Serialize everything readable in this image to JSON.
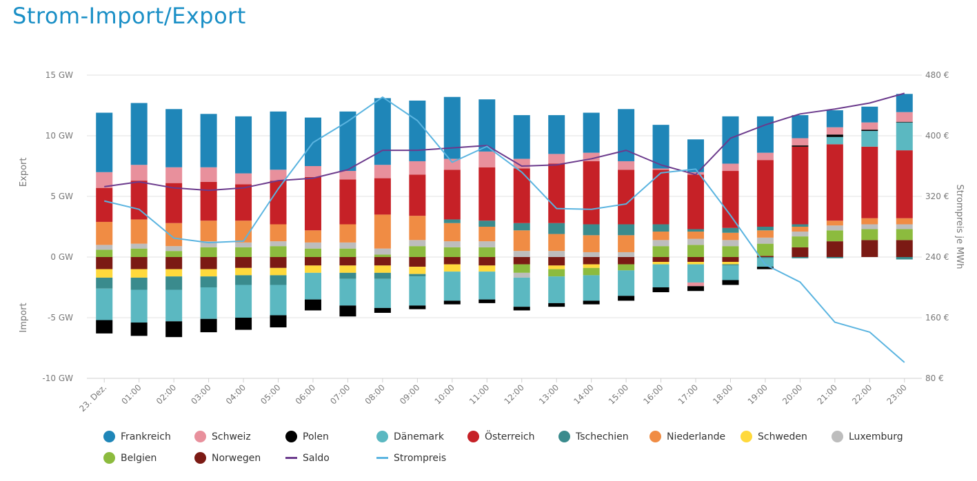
{
  "page": {
    "title": "Strom-Import/Export"
  },
  "chart_data": {
    "type": "bar",
    "stacked": true,
    "title": "Strom-Import/Export",
    "categories": [
      "23. Dez.",
      "01:00",
      "02:00",
      "03:00",
      "04:00",
      "05:00",
      "06:00",
      "07:00",
      "08:00",
      "09:00",
      "10:00",
      "11:00",
      "12:00",
      "13:00",
      "14:00",
      "15:00",
      "16:00",
      "17:00",
      "18:00",
      "19:00",
      "20:00",
      "21:00",
      "22:00",
      "23:00"
    ],
    "y_left": {
      "min": -10,
      "max": 15,
      "ticks": [
        -10,
        -5,
        0,
        5,
        10,
        15
      ],
      "tick_labels": [
        "-10 GW",
        "-5 GW",
        "0 GW",
        "5 GW",
        "10 GW",
        "15 GW"
      ]
    },
    "y_right": {
      "min": 80,
      "max": 480,
      "ticks": [
        80,
        160,
        240,
        320,
        400,
        480
      ],
      "tick_labels": [
        "80 €",
        "160 €",
        "240 €",
        "320 €",
        "400 €",
        "480 €"
      ],
      "label": "Strompreis je MWh"
    },
    "ylabel_positive": "Export",
    "ylabel_negative": "Import",
    "series": [
      {
        "name": "Frankreich",
        "color": "#1f86b8",
        "values": [
          4.9,
          5.1,
          4.8,
          4.4,
          4.7,
          4.8,
          4.0,
          4.9,
          5.5,
          5.0,
          5.1,
          4.3,
          3.6,
          3.2,
          3.3,
          4.3,
          3.6,
          2.7,
          3.9,
          3.0,
          1.9,
          1.4,
          1.3,
          1.5
        ]
      },
      {
        "name": "Schweiz",
        "color": "#e8909c",
        "values": [
          1.3,
          1.3,
          1.3,
          1.2,
          0.9,
          0.9,
          0.9,
          0.7,
          1.1,
          1.1,
          0.9,
          1.3,
          0.8,
          0.8,
          0.7,
          0.7,
          0.1,
          0.2,
          0.6,
          0.6,
          0.6,
          0.6,
          0.6,
          0.8
        ]
      },
      {
        "name": "Polen",
        "color": "#000000",
        "values": [
          0,
          0,
          0,
          0,
          0,
          0,
          0,
          0,
          0,
          0,
          0,
          0,
          0,
          0,
          0,
          0,
          0,
          0,
          0,
          0,
          0.1,
          0.2,
          0.1,
          0.05
        ]
      },
      {
        "name": "Dänemark",
        "color": "#5bb8c1",
        "values": [
          0,
          0,
          0,
          0,
          0,
          0,
          0,
          0,
          0,
          0,
          0,
          0,
          0,
          0,
          0,
          0,
          0,
          0,
          0,
          0,
          0,
          0.6,
          1.3,
          2.3
        ]
      },
      {
        "name": "Österreich",
        "color": "#c62127",
        "values": [
          2.8,
          3.2,
          3.3,
          3.2,
          3.0,
          3.6,
          4.4,
          3.7,
          3.0,
          3.4,
          4.1,
          4.4,
          4.5,
          4.9,
          5.2,
          4.5,
          4.5,
          4.5,
          4.7,
          5.5,
          6.4,
          6.3,
          5.9,
          5.6
        ]
      },
      {
        "name": "Tschechien",
        "color": "#3a8b8d",
        "values": [
          0,
          0,
          0,
          0,
          0,
          0,
          0,
          0,
          0,
          0,
          0.3,
          0.5,
          0.6,
          0.9,
          0.9,
          0.9,
          0.6,
          0.2,
          0.4,
          0.3,
          0.2,
          0,
          0,
          0
        ]
      },
      {
        "name": "Niederlande",
        "color": "#f08c44",
        "values": [
          1.9,
          2.0,
          1.9,
          1.7,
          1.8,
          1.4,
          1.0,
          1.5,
          2.8,
          2.0,
          1.5,
          1.2,
          1.7,
          1.4,
          1.4,
          1.4,
          0.7,
          0.6,
          0.6,
          0.6,
          0.4,
          0.4,
          0.5,
          0.5
        ]
      },
      {
        "name": "Schweden",
        "color": "#ffd93c",
        "values": [
          0,
          0,
          0,
          0,
          0,
          0,
          0,
          0,
          0,
          0,
          0,
          0,
          0,
          0,
          0,
          0,
          0,
          0,
          0,
          0,
          0,
          0,
          0,
          0
        ]
      },
      {
        "name": "Luxemburg",
        "color": "#bdbdbd",
        "values": [
          0.4,
          0.4,
          0.4,
          0.5,
          0.4,
          0.4,
          0.5,
          0.5,
          0.5,
          0.5,
          0.5,
          0.5,
          0.5,
          0.5,
          0.4,
          0.4,
          0.5,
          0.5,
          0.5,
          0.5,
          0.4,
          0.4,
          0.4,
          0.4
        ]
      },
      {
        "name": "Belgien",
        "color": "#8cbb3e",
        "values": [
          0.6,
          0.7,
          0.5,
          0.8,
          0.8,
          0.9,
          0.7,
          0.7,
          0.2,
          0.9,
          0.8,
          0.8,
          0,
          0,
          0,
          0,
          0.9,
          1.0,
          0.9,
          1.0,
          0.9,
          0.9,
          0.9,
          0.9
        ]
      },
      {
        "name": "Norwegen",
        "color": "#7b1a14",
        "values": [
          0,
          0,
          0,
          0,
          0,
          0,
          0,
          0,
          0,
          0,
          0,
          0,
          0,
          0,
          0,
          0,
          0,
          0,
          0,
          0.1,
          0.8,
          1.3,
          1.4,
          1.4
        ]
      }
    ],
    "import_series": [
      {
        "name": "Norwegen",
        "color": "#7b1a14",
        "values": [
          -1.0,
          -1.0,
          -1.0,
          -1.0,
          -0.9,
          -0.9,
          -0.7,
          -0.7,
          -0.7,
          -0.8,
          -0.6,
          -0.7,
          -0.6,
          -0.7,
          -0.6,
          -0.6,
          -0.4,
          -0.4,
          -0.4,
          0,
          0,
          0,
          0,
          0
        ]
      },
      {
        "name": "Schweden",
        "color": "#ffd93c",
        "values": [
          -0.7,
          -0.7,
          -0.6,
          -0.6,
          -0.6,
          -0.6,
          -0.6,
          -0.6,
          -0.6,
          -0.6,
          -0.6,
          -0.5,
          0,
          -0.3,
          -0.3,
          0,
          -0.2,
          -0.2,
          -0.2,
          0,
          0,
          0,
          0,
          0
        ]
      },
      {
        "name": "Belgien",
        "color": "#8cbb3e",
        "values": [
          0,
          0,
          0,
          0,
          0,
          0,
          0,
          0,
          0,
          0,
          0,
          0,
          -0.7,
          -0.6,
          -0.6,
          -0.5,
          0,
          0,
          0,
          0,
          0,
          0,
          0,
          0
        ]
      },
      {
        "name": "Luxemburg",
        "color": "#bdbdbd",
        "values": [
          0,
          0,
          0,
          0,
          0,
          0,
          0,
          0,
          0,
          0,
          0,
          0,
          -0.4,
          0,
          0,
          0,
          0,
          0,
          0,
          0,
          0,
          0,
          0,
          0
        ]
      },
      {
        "name": "Tschechien",
        "color": "#3a8b8d",
        "values": [
          -0.9,
          -1.0,
          -1.1,
          -0.9,
          -0.8,
          -0.8,
          0,
          -0.5,
          -0.5,
          -0.2,
          0,
          0,
          0,
          0,
          0,
          0,
          0,
          0,
          -0.1,
          -0.1,
          -0.1,
          -0.1,
          0,
          -0.2
        ]
      },
      {
        "name": "Dänemark",
        "color": "#5bb8c1",
        "values": [
          -2.6,
          -2.7,
          -2.6,
          -2.6,
          -2.7,
          -2.5,
          -2.2,
          -2.2,
          -2.4,
          -2.4,
          -2.4,
          -2.3,
          -2.4,
          -2.2,
          -2.1,
          -2.1,
          -1.9,
          -1.5,
          -1.2,
          -0.7,
          0,
          0,
          0,
          0
        ]
      },
      {
        "name": "Schweiz",
        "color": "#e8909c",
        "values": [
          0,
          0,
          0,
          0,
          0,
          0,
          0,
          0,
          0,
          0,
          0,
          0,
          0,
          0,
          0,
          0,
          0,
          -0.3,
          0,
          0,
          0,
          0,
          0,
          0
        ]
      },
      {
        "name": "Polen",
        "color": "#000000",
        "values": [
          -1.1,
          -1.1,
          -1.3,
          -1.1,
          -1.0,
          -1.0,
          -0.9,
          -0.9,
          -0.4,
          -0.3,
          -0.3,
          -0.3,
          -0.3,
          -0.3,
          -0.3,
          -0.4,
          -0.4,
          -0.4,
          -0.4,
          -0.2,
          0,
          0,
          0,
          0
        ]
      }
    ],
    "lines": [
      {
        "name": "Saldo",
        "color": "#6b3a8c",
        "axis": "left",
        "values": [
          5.8,
          6.2,
          5.7,
          5.5,
          5.7,
          6.3,
          6.5,
          7.2,
          8.8,
          8.8,
          9.0,
          9.2,
          7.5,
          7.6,
          8.1,
          8.8,
          7.6,
          6.8,
          9.8,
          10.9,
          11.8,
          12.2,
          12.7,
          13.5
        ]
      },
      {
        "name": "Strompreis",
        "color": "#5ab4e0",
        "axis": "right",
        "values": [
          314,
          303,
          265,
          259,
          261,
          330,
          391,
          419,
          451,
          420,
          365,
          386,
          352,
          304,
          303,
          310,
          351,
          356,
          295,
          230,
          207,
          154,
          141,
          101
        ]
      }
    ],
    "legend": [
      "Frankreich",
      "Schweiz",
      "Polen",
      "Dänemark",
      "Österreich",
      "Tschechien",
      "Niederlande",
      "Schweden",
      "Luxemburg",
      "Belgien",
      "Norwegen",
      "Saldo",
      "Strompreis"
    ],
    "legend_position": "bottom",
    "grid": true
  }
}
